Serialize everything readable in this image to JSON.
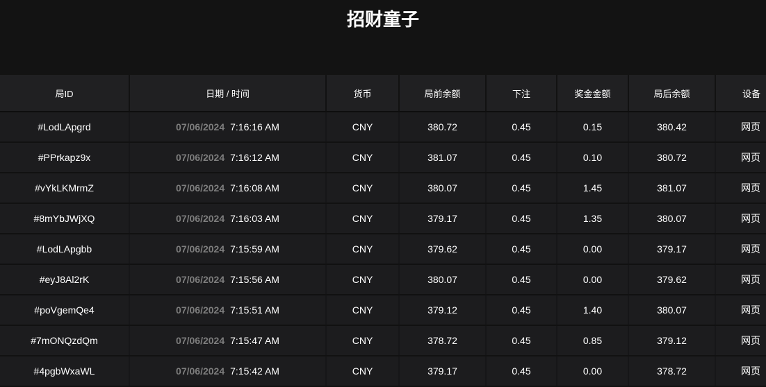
{
  "title": "招财童子",
  "columns": [
    "局ID",
    "日期 / 时间",
    "货币",
    "局前余额",
    "下注",
    "奖金金额",
    "局后余额",
    "设备"
  ],
  "rows": [
    {
      "id": "#LodLApgrd",
      "date": "07/06/2024",
      "time": "7:16:16 AM",
      "currency": "CNY",
      "before": "380.72",
      "bet": "0.45",
      "win": "0.15",
      "after": "380.42",
      "device": "网页"
    },
    {
      "id": "#PPrkapz9x",
      "date": "07/06/2024",
      "time": "7:16:12 AM",
      "currency": "CNY",
      "before": "381.07",
      "bet": "0.45",
      "win": "0.10",
      "after": "380.72",
      "device": "网页"
    },
    {
      "id": "#vYkLKMrmZ",
      "date": "07/06/2024",
      "time": "7:16:08 AM",
      "currency": "CNY",
      "before": "380.07",
      "bet": "0.45",
      "win": "1.45",
      "after": "381.07",
      "device": "网页"
    },
    {
      "id": "#8mYbJWjXQ",
      "date": "07/06/2024",
      "time": "7:16:03 AM",
      "currency": "CNY",
      "before": "379.17",
      "bet": "0.45",
      "win": "1.35",
      "after": "380.07",
      "device": "网页"
    },
    {
      "id": "#LodLApgbb",
      "date": "07/06/2024",
      "time": "7:15:59 AM",
      "currency": "CNY",
      "before": "379.62",
      "bet": "0.45",
      "win": "0.00",
      "after": "379.17",
      "device": "网页"
    },
    {
      "id": "#eyJ8Al2rK",
      "date": "07/06/2024",
      "time": "7:15:56 AM",
      "currency": "CNY",
      "before": "380.07",
      "bet": "0.45",
      "win": "0.00",
      "after": "379.62",
      "device": "网页"
    },
    {
      "id": "#poVgemQe4",
      "date": "07/06/2024",
      "time": "7:15:51 AM",
      "currency": "CNY",
      "before": "379.12",
      "bet": "0.45",
      "win": "1.40",
      "after": "380.07",
      "device": "网页"
    },
    {
      "id": "#7mONQzdQm",
      "date": "07/06/2024",
      "time": "7:15:47 AM",
      "currency": "CNY",
      "before": "378.72",
      "bet": "0.45",
      "win": "0.85",
      "after": "379.12",
      "device": "网页"
    },
    {
      "id": "#4pgbWxaWL",
      "date": "07/06/2024",
      "time": "7:15:42 AM",
      "currency": "CNY",
      "before": "379.17",
      "bet": "0.45",
      "win": "0.00",
      "after": "378.72",
      "device": "网页"
    }
  ]
}
